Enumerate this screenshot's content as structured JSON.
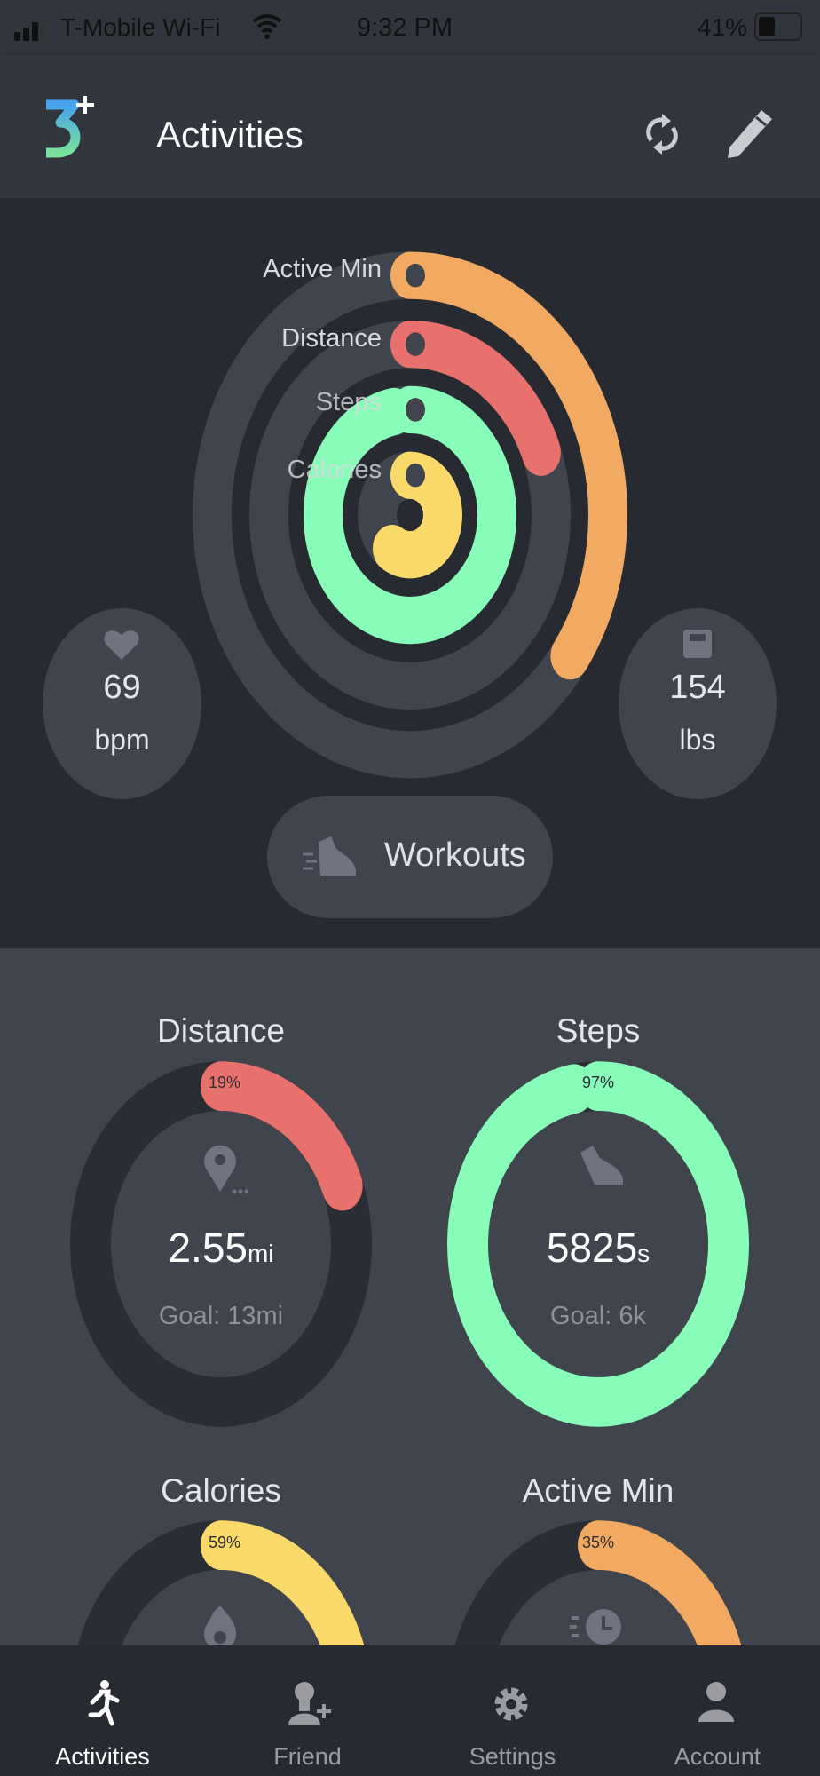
{
  "status_bar": {
    "carrier": "T-Mobile Wi-Fi",
    "time": "9:32 PM",
    "battery": "41%",
    "battery_level": 0.41
  },
  "header": {
    "logo": "3+",
    "title": "Activities",
    "sync_icon": "sync-icon",
    "edit_icon": "pencil-icon"
  },
  "colors": {
    "active_min": "#f2a962",
    "distance": "#e8706d",
    "steps": "#88fcb9",
    "calories": "#fad96b",
    "track": "#3f444d",
    "background": "#272a31"
  },
  "rings": [
    {
      "label": "Active Min",
      "icon": "clock-icon",
      "progress": 0.35,
      "color": "#f2a962"
    },
    {
      "label": "Distance",
      "icon": "location-pin-icon",
      "progress": 0.19,
      "color": "#e8706d"
    },
    {
      "label": "Steps",
      "icon": "shoe-icon",
      "progress": 0.97,
      "color": "#88fcb9"
    },
    {
      "label": "Calories",
      "icon": "flame-icon",
      "progress": 0.59,
      "color": "#fad96b"
    }
  ],
  "heart_rate": {
    "value": "69",
    "unit": "bpm",
    "icon": "heart-icon"
  },
  "weight": {
    "value": "154",
    "unit": "lbs",
    "icon": "scale-icon"
  },
  "workouts_button": {
    "label": "Workouts",
    "icon": "running-shoe-icon"
  },
  "cards": [
    {
      "title": "Distance",
      "percent": "19%",
      "progress": 0.19,
      "value": "2.55",
      "unit": "mi",
      "goal": "Goal: 13mi",
      "color": "#e8706d",
      "icon": "location-pin-icon"
    },
    {
      "title": "Steps",
      "percent": "97%",
      "progress": 0.97,
      "value": "5825",
      "unit": "s",
      "goal": "Goal: 6k",
      "color": "#88fcb9",
      "icon": "shoe-icon"
    },
    {
      "title": "Calories",
      "percent": "59%",
      "progress": 0.59,
      "color": "#fad96b",
      "icon": "flame-icon"
    },
    {
      "title": "Active Min",
      "percent": "35%",
      "progress": 0.35,
      "color": "#f2a962",
      "icon": "clock-icon"
    }
  ],
  "tabs": [
    {
      "label": "Activities",
      "icon": "running-icon",
      "active": true
    },
    {
      "label": "Friend",
      "icon": "add-friend-icon",
      "active": false
    },
    {
      "label": "Settings",
      "icon": "gear-icon",
      "active": false
    },
    {
      "label": "Account",
      "icon": "person-icon",
      "active": false
    }
  ]
}
